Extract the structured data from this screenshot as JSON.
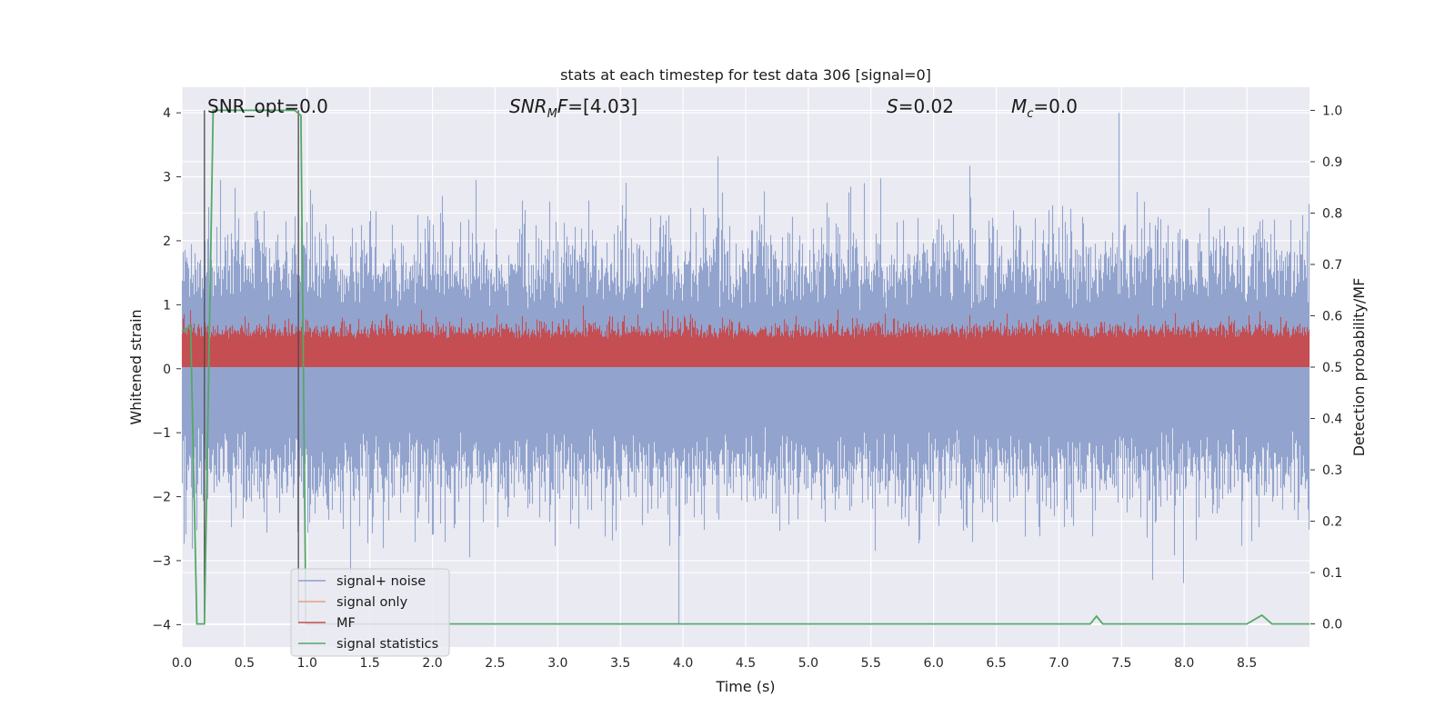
{
  "chart_data": {
    "type": "line",
    "title": "stats at each timestep for test data 306 [signal=0]",
    "xlabel": "Time (s)",
    "ylabel": "Whitened strain",
    "ylabel_right": "Detection probability/MF",
    "xlim": [
      0.0,
      9.0
    ],
    "ylim": [
      -4.35,
      4.4
    ],
    "ylim_right": [
      -0.045,
      1.045
    ],
    "x_ticks": [
      "0.0",
      "0.5",
      "1.0",
      "1.5",
      "2.0",
      "2.5",
      "3.0",
      "3.5",
      "4.0",
      "4.5",
      "5.0",
      "5.5",
      "6.0",
      "6.5",
      "7.0",
      "7.5",
      "8.0",
      "8.5"
    ],
    "y_ticks": [
      "−4",
      "−3",
      "−2",
      "−1",
      "0",
      "1",
      "2",
      "3",
      "4"
    ],
    "y_ticks_right": [
      "0.0",
      "0.1",
      "0.2",
      "0.3",
      "0.4",
      "0.5",
      "0.6",
      "0.7",
      "0.8",
      "0.9",
      "1.0"
    ],
    "grid": true,
    "legend_position": "lower-left",
    "annotations": {
      "snr_opt": "SNR_opt=0.0",
      "snr_mf": "=[4.03]",
      "s_val": "=0.02",
      "mc_val": "=0.0"
    },
    "vertical_markers": [
      0.18,
      0.93
    ],
    "series": [
      {
        "name": "signal+ noise",
        "color": "#8da0cb",
        "axis": "left",
        "description_envelope": "dense noise roughly between -2.5 and 2.5 with spikes up to 4.0 near 7.5 s and down to -4.0 near 3.97 s",
        "peaks": [
          [
            1.35,
            -3.2
          ],
          [
            2.35,
            2.95
          ],
          [
            3.97,
            -4.0
          ],
          [
            5.45,
            2.9
          ],
          [
            7.48,
            4.0
          ],
          [
            7.75,
            3.3
          ],
          [
            7.75,
            -3.3
          ],
          [
            8.0,
            -3.35
          ],
          [
            8.95,
            2.4
          ]
        ]
      },
      {
        "name": "signal only",
        "color": "#e8a07c",
        "axis": "left",
        "values": []
      },
      {
        "name": "MF",
        "color": "#c44e52",
        "axis": "right",
        "range": [
          0.5,
          0.62
        ]
      },
      {
        "name": "signal statistics",
        "color": "#55a868",
        "axis": "right",
        "x": [
          0.0,
          0.07,
          0.12,
          0.18,
          0.25,
          0.9,
          0.95,
          0.99,
          7.25,
          7.3,
          7.35,
          8.5,
          8.62,
          8.7,
          9.0
        ],
        "y": [
          0.57,
          0.58,
          0.0,
          0.0,
          1.0,
          1.0,
          0.99,
          0.0,
          0.0,
          0.015,
          0.0,
          0.0,
          0.017,
          0.0,
          0.0
        ]
      }
    ]
  }
}
